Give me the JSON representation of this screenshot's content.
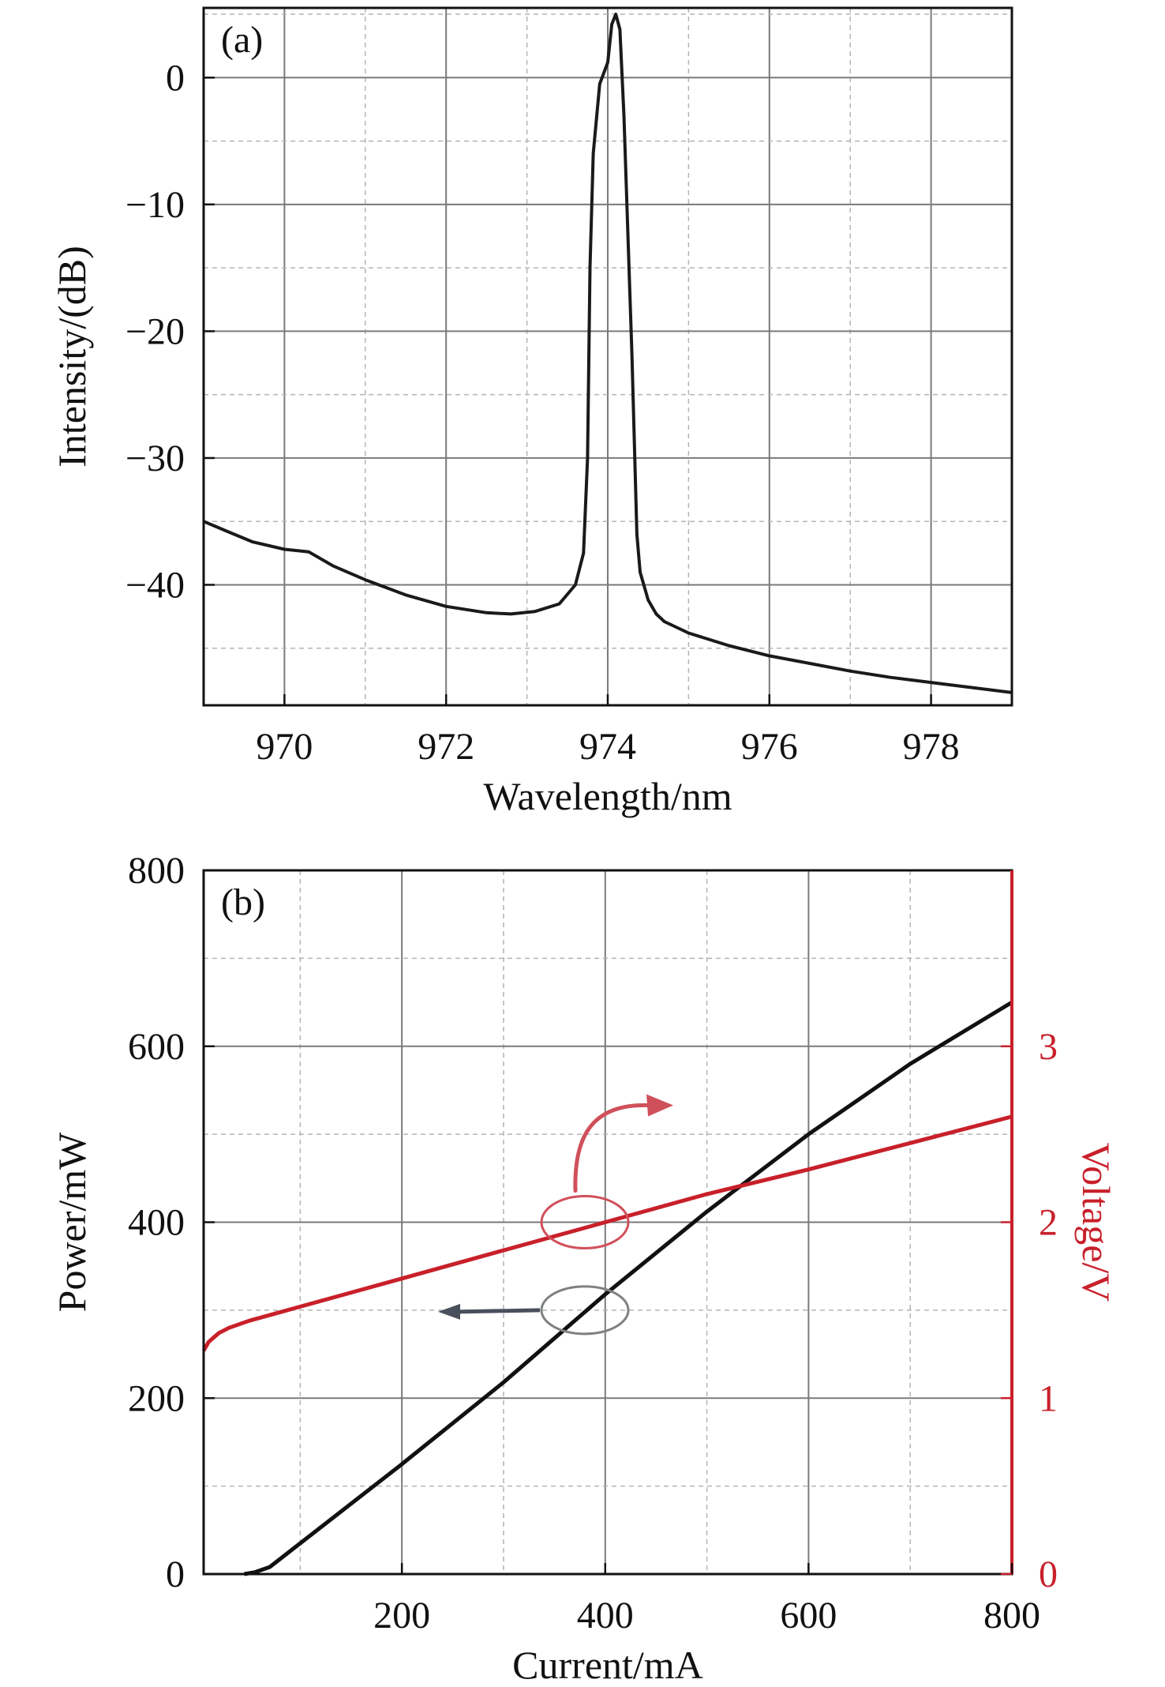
{
  "colors": {
    "axis": "#111111",
    "grid_major": "#7a7a7a",
    "grid_minor": "#b4b4b4",
    "spectrum": "#1a1a1a",
    "power": "#111111",
    "voltage": "#c8202a",
    "voltage_axis": "#c8202a",
    "marker_gray": "#808080",
    "marker_red": "#d0505a"
  },
  "chart_data": [
    {
      "type": "line",
      "panel_label": "(a)",
      "xlabel": "Wavelength/nm",
      "ylabel": "Intensity/(dB)",
      "xlim": [
        969,
        979
      ],
      "ylim": [
        -49.5,
        5.5
      ],
      "xticks": [
        970,
        972,
        974,
        976,
        978
      ],
      "xtick_labels": [
        "970",
        "972",
        "974",
        "976",
        "978"
      ],
      "yticks": [
        0,
        -10,
        -20,
        -30,
        -40
      ],
      "ytick_labels": [
        "0",
        "−10",
        "−20",
        "−30",
        "−40"
      ],
      "grid": "major solid, minor dashed",
      "series": [
        {
          "x": [
            969.0,
            969.3,
            969.6,
            970.0,
            970.3,
            970.6,
            971.0,
            971.5,
            972.0,
            972.5,
            972.8,
            973.1,
            973.4,
            973.6,
            973.7,
            973.75,
            973.78,
            973.82,
            973.9,
            974.0,
            974.05,
            974.1,
            974.15,
            974.2,
            974.3,
            974.36,
            974.4,
            974.5,
            974.6,
            974.7,
            975.0,
            975.5,
            976.0,
            976.5,
            977.0,
            977.5,
            978.0,
            978.5,
            979.0
          ],
          "y": [
            -35.0,
            -35.8,
            -36.6,
            -37.2,
            -37.4,
            -38.5,
            -39.6,
            -40.8,
            -41.7,
            -42.2,
            -42.3,
            -42.1,
            -41.5,
            -40.0,
            -37.5,
            -30.0,
            -15.0,
            -6.0,
            -0.5,
            1.2,
            4.2,
            5.0,
            3.8,
            -3.0,
            -22.0,
            -36.0,
            -39.0,
            -41.2,
            -42.3,
            -42.9,
            -43.8,
            -44.8,
            -45.6,
            -46.2,
            -46.8,
            -47.3,
            -47.7,
            -48.1,
            -48.5
          ]
        }
      ]
    },
    {
      "type": "line",
      "panel_label": "(b)",
      "xlabel": "Current/mA",
      "ylabel": "Power/mW",
      "y2label": "Voltage/V",
      "xlim": [
        5,
        800
      ],
      "ylim": [
        0,
        800
      ],
      "y2lim": [
        0,
        4
      ],
      "xticks": [
        200,
        400,
        600,
        800
      ],
      "xtick_labels": [
        "200",
        "400",
        "600",
        "800"
      ],
      "yticks": [
        0,
        200,
        400,
        600,
        800
      ],
      "ytick_labels": [
        "0",
        "200",
        "400",
        "600",
        "800"
      ],
      "y2ticks": [
        0,
        1,
        2,
        3
      ],
      "y2tick_labels": [
        "0",
        "1",
        "2",
        "3"
      ],
      "grid": "major solid, minor dashed",
      "series": [
        {
          "axis": "left",
          "x": [
            45,
            55,
            70,
            100,
            200,
            300,
            400,
            500,
            600,
            700,
            800
          ],
          "y": [
            0,
            2,
            8,
            35,
            125,
            218,
            318,
            412,
            500,
            580,
            650
          ]
        },
        {
          "axis": "right",
          "x": [
            5,
            10,
            20,
            30,
            50,
            75,
            100,
            150,
            200,
            300,
            400,
            500,
            600,
            700,
            800
          ],
          "y": [
            1.27,
            1.32,
            1.37,
            1.4,
            1.44,
            1.48,
            1.52,
            1.6,
            1.68,
            1.84,
            2.0,
            2.16,
            2.3,
            2.45,
            2.6
          ]
        }
      ]
    }
  ]
}
